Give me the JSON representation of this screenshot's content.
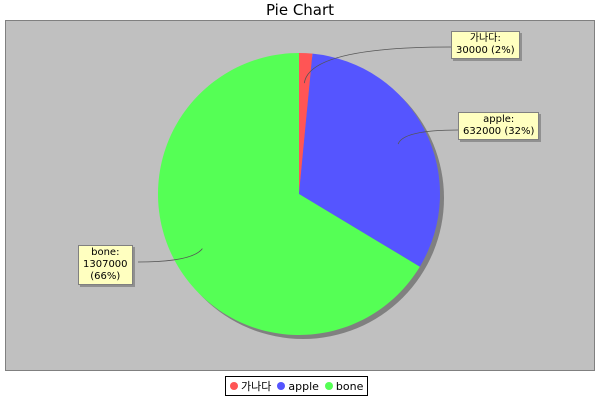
{
  "chart_data": {
    "type": "pie",
    "title": "Pie Chart",
    "slices": [
      {
        "label": "가나다",
        "value": 30000,
        "percent": "2%",
        "color": "#ff5555"
      },
      {
        "label": "apple",
        "value": 632000,
        "percent": "32%",
        "color": "#5555ff"
      },
      {
        "label": "bone",
        "value": 1307000,
        "percent": "66%",
        "color": "#55ff55"
      }
    ],
    "callouts": [
      {
        "lines": [
          "가나다:",
          "30000 (2%)"
        ]
      },
      {
        "lines": [
          "apple:",
          "632000 (32%)"
        ]
      },
      {
        "lines": [
          "bone:",
          "1307000",
          "(66%)"
        ]
      }
    ],
    "legend": {
      "position": "bottom"
    },
    "background_color": "#c0c0c0"
  }
}
